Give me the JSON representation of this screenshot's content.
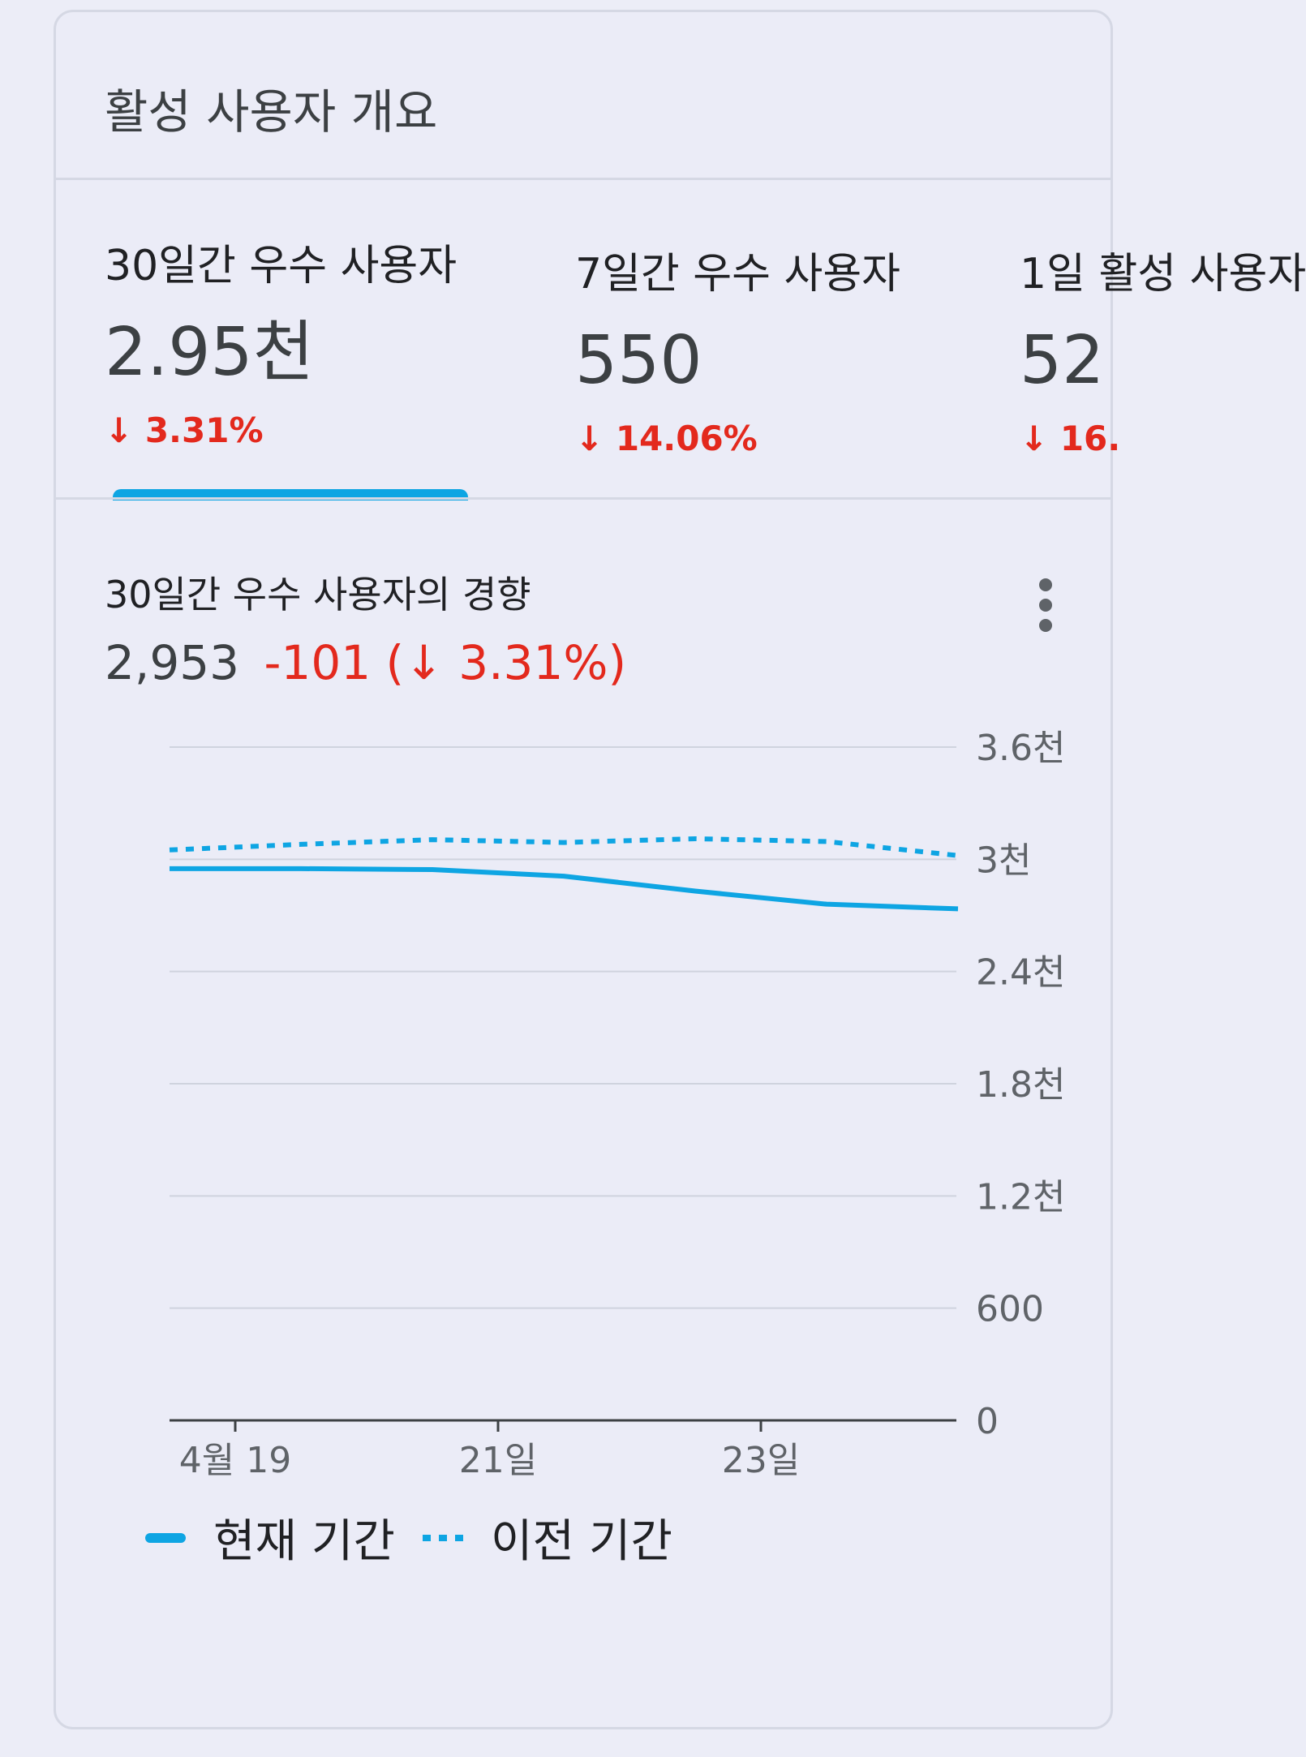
{
  "card": {
    "title": "활성 사용자 개요"
  },
  "tabs": [
    {
      "label": "30일간 우수 사용자",
      "value": "2.95천",
      "change": "↓ 3.31%",
      "selected": true
    },
    {
      "label": "7일간 우수 사용자",
      "value": "550",
      "change": "↓ 14.06%",
      "selected": false
    },
    {
      "label": "1일 활성 사용자",
      "value": "52",
      "change": "↓ 16.",
      "selected": false
    }
  ],
  "trend": {
    "title": "30일간 우수 사용자의 경향",
    "value": "2,953",
    "delta": "-101 (↓ 3.31%)"
  },
  "colors": {
    "accent": "#0ea5e3",
    "negative": "#e3291d",
    "text": "#3c4043"
  },
  "chart_data": {
    "type": "line",
    "x": [
      0,
      1,
      2,
      3,
      4,
      5,
      6
    ],
    "x_tick_labels": [
      {
        "x": 0.5,
        "label": "4월 19"
      },
      {
        "x": 2.5,
        "label": "21일"
      },
      {
        "x": 4.5,
        "label": "23일"
      }
    ],
    "y_tick_labels": [
      "0",
      "600",
      "1.2천",
      "1.8천",
      "2.4천",
      "3천",
      "3.6천"
    ],
    "y_tick_values": [
      0,
      600,
      1200,
      1800,
      2400,
      3000,
      3600
    ],
    "ylim": [
      0,
      3600
    ],
    "grid": true,
    "legend_position": "bottom-left",
    "series": [
      {
        "name": "현재 기간",
        "style": "solid",
        "values": [
          2950,
          2950,
          2945,
          2910,
          2830,
          2760,
          2735
        ]
      },
      {
        "name": "이전 기간",
        "style": "dotted",
        "values": [
          3050,
          3080,
          3105,
          3090,
          3110,
          3095,
          3020
        ]
      }
    ]
  },
  "icons": {
    "more": "more-vert-icon"
  }
}
